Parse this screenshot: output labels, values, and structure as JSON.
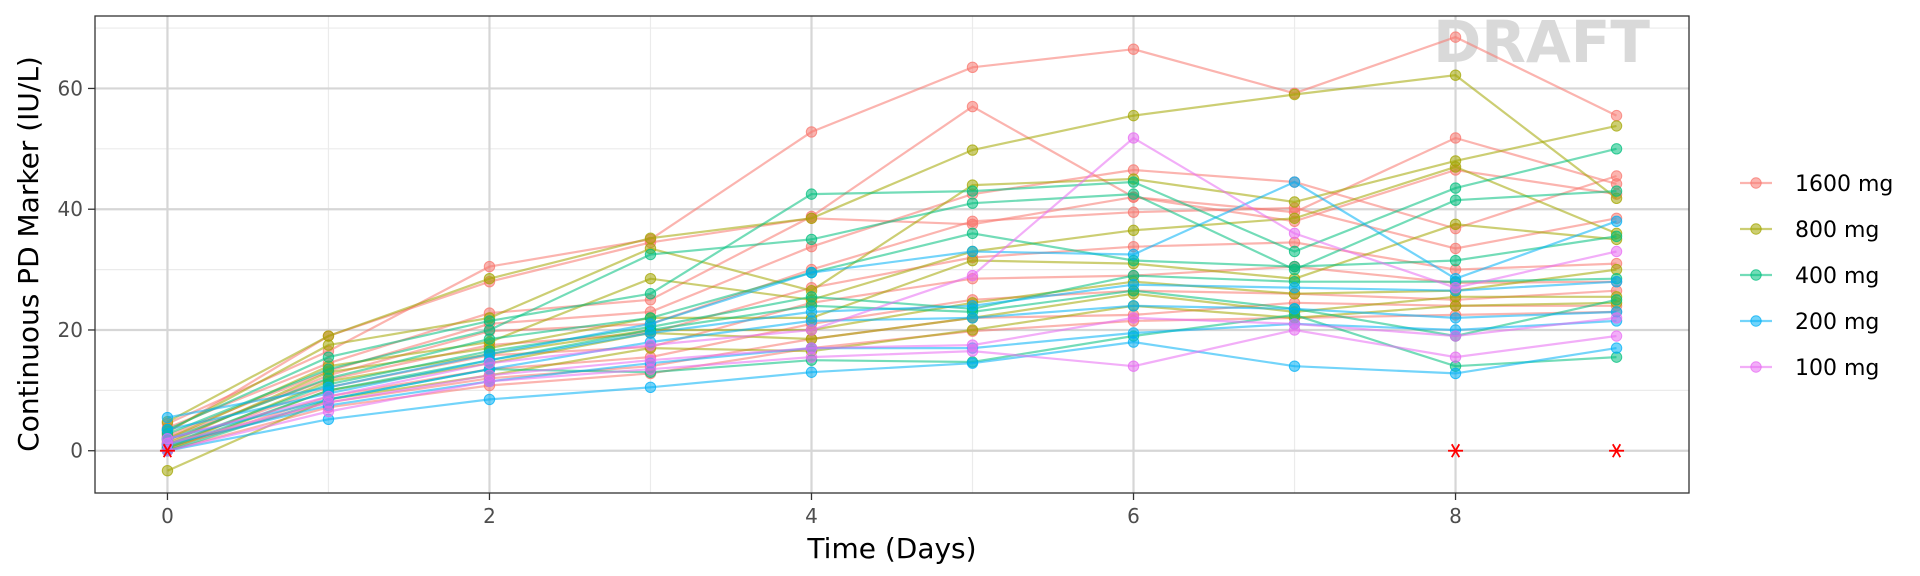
{
  "chart_data": {
    "type": "line",
    "title": "",
    "xlabel": "Time (Days)",
    "ylabel": "Continuous PD Marker (IU/L)",
    "xlim": [
      -0.45,
      9.45
    ],
    "ylim": [
      -7,
      72
    ],
    "x_ticks": [
      0,
      2,
      4,
      6,
      8
    ],
    "y_ticks": [
      0,
      20,
      40,
      60
    ],
    "grid": true,
    "legend_position": "right",
    "watermark": "DRAFT",
    "x": [
      0,
      1,
      2,
      3,
      4,
      5,
      6,
      7,
      8,
      9
    ],
    "legend": [
      {
        "name": "1600 mg",
        "color": "#F8766D"
      },
      {
        "name": "800 mg",
        "color": "#A3A500"
      },
      {
        "name": "400 mg",
        "color": "#00BF7D"
      },
      {
        "name": "200 mg",
        "color": "#00B0F6"
      },
      {
        "name": "100 mg",
        "color": "#E76BF3"
      }
    ],
    "series": [
      {
        "group": "1600 mg",
        "color": "#F8766D",
        "values": [
          4.5,
          16.5,
          30.5,
          35.0,
          52.8,
          63.5,
          66.5,
          59.2,
          68.5,
          55.5
        ]
      },
      {
        "group": "1600 mg",
        "color": "#F8766D",
        "values": [
          3.8,
          14.5,
          22.8,
          25.0,
          38.8,
          57.0,
          42.0,
          39.5,
          51.8,
          44.2
        ]
      },
      {
        "group": "1600 mg",
        "color": "#F8766D",
        "values": [
          2.5,
          13.2,
          21.0,
          23.0,
          33.8,
          42.5,
          46.5,
          44.5,
          36.8,
          45.5
        ]
      },
      {
        "group": "1600 mg",
        "color": "#F8766D",
        "values": [
          1.5,
          12.5,
          19.8,
          21.0,
          30.0,
          38.0,
          39.5,
          40.2,
          33.5,
          38.5
        ]
      },
      {
        "group": "1600 mg",
        "color": "#F8766D",
        "values": [
          2.2,
          11.8,
          17.5,
          19.5,
          27.0,
          32.0,
          33.8,
          34.5,
          30.0,
          31.0
        ]
      },
      {
        "group": "1600 mg",
        "color": "#F8766D",
        "values": [
          1.0,
          10.5,
          15.8,
          17.2,
          24.5,
          28.5,
          29.0,
          30.5,
          27.8,
          28.0
        ]
      },
      {
        "group": "1600 mg",
        "color": "#F8766D",
        "values": [
          0.3,
          9.0,
          13.5,
          15.5,
          21.0,
          25.0,
          26.5,
          26.0,
          25.0,
          26.5
        ]
      },
      {
        "group": "1600 mg",
        "color": "#F8766D",
        "values": [
          0.6,
          8.0,
          12.0,
          14.0,
          18.5,
          22.0,
          22.5,
          24.5,
          24.0,
          24.0
        ]
      },
      {
        "group": "1600 mg",
        "color": "#F8766D",
        "values": [
          0.0,
          7.2,
          10.8,
          12.8,
          17.0,
          19.8,
          21.5,
          22.0,
          22.5,
          23.0
        ]
      },
      {
        "group": "1600 mg",
        "color": "#F8766D",
        "values": [
          3.0,
          19.0,
          28.0,
          34.5,
          38.5,
          37.5,
          42.0,
          38.0,
          46.5,
          42.5
        ]
      },
      {
        "group": "800 mg",
        "color": "#A3A500",
        "values": [
          4.8,
          19.0,
          28.5,
          35.2,
          38.5,
          49.8,
          55.5,
          59.0,
          62.2,
          41.8
        ]
      },
      {
        "group": "800 mg",
        "color": "#A3A500",
        "values": [
          3.2,
          17.5,
          22.0,
          33.5,
          26.5,
          44.0,
          45.0,
          41.2,
          48.0,
          53.8
        ]
      },
      {
        "group": "800 mg",
        "color": "#A3A500",
        "values": [
          2.0,
          14.0,
          18.0,
          28.5,
          25.0,
          33.0,
          36.5,
          38.5,
          47.0,
          36.0
        ]
      },
      {
        "group": "800 mg",
        "color": "#A3A500",
        "values": [
          1.2,
          13.0,
          17.0,
          22.0,
          22.0,
          31.5,
          31.0,
          28.5,
          37.5,
          35.0
        ]
      },
      {
        "group": "800 mg",
        "color": "#A3A500",
        "values": [
          0.5,
          11.5,
          16.0,
          20.0,
          20.0,
          24.5,
          28.0,
          26.0,
          26.5,
          30.0
        ]
      },
      {
        "group": "800 mg",
        "color": "#A3A500",
        "values": [
          0.2,
          10.0,
          14.5,
          19.5,
          18.5,
          22.0,
          26.0,
          23.0,
          25.5,
          25.5
        ]
      },
      {
        "group": "800 mg",
        "color": "#A3A500",
        "values": [
          -3.3,
          8.5,
          12.5,
          17.0,
          16.5,
          20.0,
          24.0,
          22.0,
          24.0,
          24.5
        ]
      },
      {
        "group": "400 mg",
        "color": "#00BF7D",
        "values": [
          3.5,
          15.5,
          21.5,
          26.0,
          42.5,
          43.0,
          44.5,
          33.0,
          43.5,
          50.0
        ]
      },
      {
        "group": "400 mg",
        "color": "#00BF7D",
        "values": [
          2.8,
          13.5,
          20.0,
          32.5,
          35.0,
          41.0,
          42.5,
          30.0,
          41.5,
          43.0
        ]
      },
      {
        "group": "400 mg",
        "color": "#00BF7D",
        "values": [
          1.8,
          12.0,
          18.5,
          22.0,
          29.5,
          36.0,
          31.5,
          30.5,
          31.5,
          35.5
        ]
      },
      {
        "group": "400 mg",
        "color": "#00BF7D",
        "values": [
          1.0,
          11.0,
          16.5,
          20.5,
          25.5,
          23.5,
          29.0,
          28.0,
          28.0,
          28.5
        ]
      },
      {
        "group": "400 mg",
        "color": "#00BF7D",
        "values": [
          0.5,
          10.0,
          15.0,
          20.0,
          24.0,
          23.0,
          26.5,
          23.5,
          19.0,
          25.0
        ]
      },
      {
        "group": "400 mg",
        "color": "#00BF7D",
        "values": [
          0.0,
          8.5,
          13.5,
          13.0,
          15.0,
          14.7,
          19.0,
          22.5,
          14.0,
          15.5
        ]
      },
      {
        "group": "200 mg",
        "color": "#00B0F6",
        "values": [
          5.5,
          10.5,
          16.0,
          21.0,
          29.5,
          33.0,
          32.5,
          44.5,
          28.5,
          38.0
        ]
      },
      {
        "group": "200 mg",
        "color": "#00B0F6",
        "values": [
          3.5,
          9.5,
          15.0,
          19.5,
          23.0,
          24.0,
          27.5,
          27.0,
          26.5,
          28.0
        ]
      },
      {
        "group": "200 mg",
        "color": "#00B0F6",
        "values": [
          2.0,
          8.5,
          13.5,
          18.0,
          21.5,
          22.0,
          24.0,
          23.5,
          22.0,
          23.0
        ]
      },
      {
        "group": "200 mg",
        "color": "#00B0F6",
        "values": [
          1.0,
          7.5,
          11.5,
          14.5,
          17.0,
          17.0,
          19.5,
          21.0,
          20.0,
          21.5
        ]
      },
      {
        "group": "200 mg",
        "color": "#00B0F6",
        "values": [
          0.0,
          5.2,
          8.5,
          10.5,
          13.0,
          14.5,
          18.0,
          14.0,
          12.8,
          17.0
        ]
      },
      {
        "group": "100 mg",
        "color": "#E76BF3",
        "values": [
          2.0,
          9.0,
          14.5,
          17.5,
          20.0,
          29.0,
          51.8,
          36.0,
          27.0,
          33.0
        ]
      },
      {
        "group": "100 mg",
        "color": "#E76BF3",
        "values": [
          1.2,
          8.0,
          12.5,
          15.0,
          17.0,
          17.5,
          22.0,
          21.0,
          19.0,
          22.0
        ]
      },
      {
        "group": "100 mg",
        "color": "#E76BF3",
        "values": [
          0.0,
          6.5,
          11.5,
          13.5,
          15.5,
          16.5,
          14.0,
          20.0,
          15.5,
          19.0
        ]
      }
    ],
    "censored_markers": {
      "color": "#FF0000",
      "symbol": "*",
      "points": [
        [
          0,
          0
        ],
        [
          8,
          0
        ],
        [
          9,
          0
        ]
      ]
    }
  }
}
